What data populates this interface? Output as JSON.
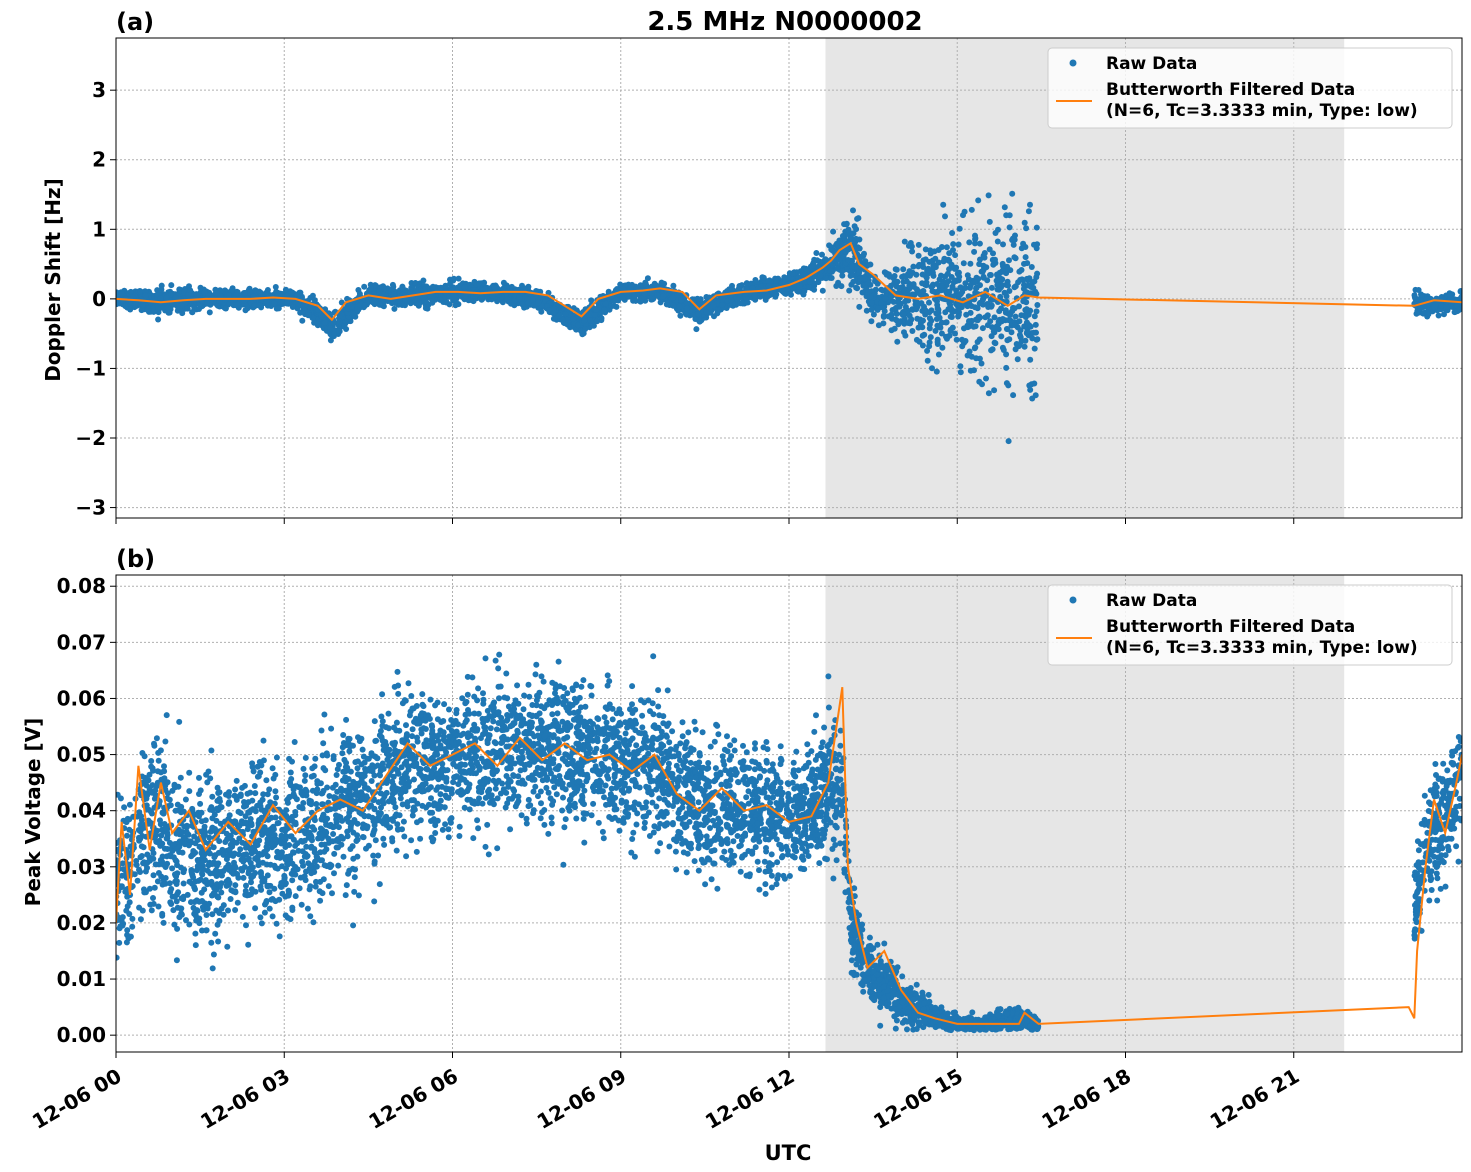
{
  "figure": {
    "title": "2.5 MHz N0000002",
    "xlabel": "UTC"
  },
  "colors": {
    "raw": "#1f77b4",
    "filtered": "#ff7f0e",
    "shade": "#e6e6e6",
    "grid": "#b0b0b0"
  },
  "legend": {
    "raw_label": "Raw Data",
    "filt_line1": "Butterworth Filtered Data",
    "filt_line2": "(N=6, Tc=3.3333 min, Type: low)",
    "placement": "upper-right"
  },
  "chart_data": [
    {
      "panel": "(a)",
      "type": "scatter",
      "ylabel": "Doppler Shift [Hz]",
      "xlim_hours": [
        0,
        24
      ],
      "ylim": [
        -3.15,
        3.75
      ],
      "yticks": [
        -3,
        -2,
        -1,
        0,
        1,
        2,
        3
      ],
      "ytick_labels": [
        "−3",
        "−2",
        "−1",
        "0",
        "1",
        "2",
        "3"
      ],
      "grid": true,
      "shaded_interval_hours": [
        12.65,
        21.9
      ],
      "series": [
        {
          "name": "Raw Data",
          "style": "dots",
          "x_hours": [
            0.0,
            0.8,
            1.6,
            2.4,
            3.2,
            3.85,
            4.5,
            5.3,
            6.1,
            6.8,
            7.5,
            8.3,
            9.0,
            9.7,
            10.4,
            11.2,
            12.0,
            12.6,
            12.9,
            13.2,
            13.5,
            13.9,
            14.3,
            14.7,
            15.1,
            15.5,
            15.9,
            16.2,
            16.45,
            23.15,
            23.5,
            24.0
          ],
          "y_center": [
            0.0,
            -0.05,
            0.0,
            0.0,
            0.0,
            -0.4,
            0.05,
            0.05,
            0.1,
            0.1,
            0.0,
            -0.35,
            0.1,
            0.1,
            -0.2,
            0.1,
            0.2,
            0.4,
            0.65,
            0.7,
            0.0,
            0.0,
            0.05,
            0.0,
            0.1,
            0.0,
            0.0,
            0.05,
            0.0,
            -0.05,
            -0.1,
            -0.05
          ],
          "y_spread": [
            0.15,
            0.3,
            0.25,
            0.2,
            0.2,
            0.35,
            0.2,
            0.25,
            0.25,
            0.2,
            0.2,
            0.3,
            0.2,
            0.2,
            0.3,
            0.2,
            0.25,
            0.35,
            0.6,
            0.9,
            0.5,
            0.8,
            1.2,
            1.6,
            1.8,
            1.9,
            2.1,
            2.3,
            2.4,
            0.3,
            0.25,
            0.2
          ]
        },
        {
          "name": "Butterworth Filtered Data\n(N=6, Tc=3.3333 min, Type: low)",
          "style": "line",
          "x_hours": [
            0.0,
            0.4,
            0.8,
            1.2,
            1.6,
            2.0,
            2.4,
            2.8,
            3.2,
            3.6,
            3.85,
            4.1,
            4.5,
            4.9,
            5.3,
            5.7,
            6.1,
            6.5,
            6.9,
            7.3,
            7.7,
            8.1,
            8.3,
            8.6,
            9.0,
            9.4,
            9.7,
            10.1,
            10.4,
            10.7,
            11.2,
            11.6,
            12.0,
            12.3,
            12.6,
            12.75,
            12.9,
            13.1,
            13.25,
            13.5,
            13.9,
            14.3,
            14.7,
            15.1,
            15.5,
            15.9,
            16.2,
            16.45,
            23.15,
            23.5,
            24.0
          ],
          "y": [
            0.0,
            -0.02,
            -0.05,
            -0.02,
            0.0,
            0.0,
            0.0,
            0.02,
            0.0,
            -0.1,
            -0.3,
            -0.05,
            0.05,
            0.0,
            0.05,
            0.1,
            0.1,
            0.08,
            0.1,
            0.1,
            0.05,
            -0.15,
            -0.25,
            0.0,
            0.1,
            0.12,
            0.15,
            0.1,
            -0.15,
            0.05,
            0.1,
            0.12,
            0.2,
            0.3,
            0.45,
            0.55,
            0.7,
            0.8,
            0.5,
            0.35,
            0.05,
            0.0,
            0.05,
            -0.05,
            0.1,
            -0.1,
            0.05,
            0.02,
            -0.1,
            -0.02,
            -0.05
          ]
        }
      ]
    },
    {
      "panel": "(b)",
      "type": "scatter",
      "ylabel": "Peak Voltage [V]",
      "xlim_hours": [
        0,
        24
      ],
      "ylim": [
        -0.003,
        0.082
      ],
      "yticks": [
        0.0,
        0.01,
        0.02,
        0.03,
        0.04,
        0.05,
        0.06,
        0.07,
        0.08
      ],
      "ytick_labels": [
        "0.00",
        "0.01",
        "0.02",
        "0.03",
        "0.04",
        "0.05",
        "0.06",
        "0.07",
        "0.08"
      ],
      "grid": true,
      "shaded_interval_hours": [
        12.65,
        21.9
      ],
      "xticks_hours": [
        0,
        3,
        6,
        9,
        12,
        15,
        18,
        21
      ],
      "xtick_labels": [
        "12-06 00",
        "12-06 03",
        "12-06 06",
        "12-06 09",
        "12-06 12",
        "12-06 15",
        "12-06 18",
        "12-06 21"
      ],
      "series": [
        {
          "name": "Raw Data",
          "style": "dots",
          "x_hours": [
            0.0,
            0.3,
            0.6,
            1.0,
            1.5,
            2.0,
            2.5,
            3.0,
            3.5,
            4.0,
            4.5,
            5.0,
            5.5,
            6.0,
            6.5,
            7.0,
            7.5,
            8.0,
            8.5,
            9.0,
            9.5,
            10.0,
            10.5,
            11.0,
            11.5,
            12.0,
            12.4,
            12.75,
            12.95,
            13.1,
            13.4,
            13.8,
            14.2,
            14.6,
            15.0,
            15.5,
            16.0,
            16.45,
            23.15,
            23.4,
            23.7,
            24.0
          ],
          "y_center": [
            0.026,
            0.032,
            0.038,
            0.034,
            0.032,
            0.033,
            0.035,
            0.034,
            0.036,
            0.04,
            0.042,
            0.047,
            0.048,
            0.049,
            0.05,
            0.051,
            0.052,
            0.05,
            0.05,
            0.049,
            0.048,
            0.044,
            0.04,
            0.041,
            0.04,
            0.038,
            0.04,
            0.045,
            0.044,
            0.02,
            0.012,
            0.008,
            0.005,
            0.003,
            0.002,
            0.002,
            0.003,
            0.002,
            0.022,
            0.035,
            0.04,
            0.045
          ],
          "y_spread": [
            0.022,
            0.024,
            0.025,
            0.024,
            0.024,
            0.024,
            0.024,
            0.024,
            0.023,
            0.022,
            0.022,
            0.02,
            0.02,
            0.02,
            0.02,
            0.021,
            0.021,
            0.021,
            0.021,
            0.021,
            0.021,
            0.021,
            0.02,
            0.019,
            0.019,
            0.018,
            0.016,
            0.022,
            0.018,
            0.012,
            0.01,
            0.008,
            0.006,
            0.003,
            0.002,
            0.002,
            0.004,
            0.002,
            0.012,
            0.018,
            0.02,
            0.02
          ]
        },
        {
          "name": "Butterworth Filtered Data\n(N=6, Tc=3.3333 min, Type: low)",
          "style": "line",
          "x_hours": [
            0.0,
            0.1,
            0.25,
            0.4,
            0.6,
            0.8,
            1.0,
            1.3,
            1.6,
            2.0,
            2.4,
            2.8,
            3.2,
            3.6,
            4.0,
            4.4,
            4.8,
            5.2,
            5.6,
            6.0,
            6.4,
            6.8,
            7.2,
            7.6,
            8.0,
            8.4,
            8.8,
            9.2,
            9.6,
            10.0,
            10.4,
            10.8,
            11.2,
            11.6,
            12.0,
            12.4,
            12.7,
            12.95,
            13.05,
            13.2,
            13.4,
            13.7,
            14.0,
            14.3,
            14.6,
            15.0,
            15.4,
            15.8,
            16.1,
            16.2,
            16.45,
            23.05,
            23.15,
            23.2,
            23.35,
            23.5,
            23.7,
            23.9,
            24.0
          ],
          "y": [
            0.02,
            0.038,
            0.025,
            0.048,
            0.033,
            0.045,
            0.036,
            0.04,
            0.033,
            0.038,
            0.034,
            0.041,
            0.036,
            0.04,
            0.042,
            0.04,
            0.046,
            0.052,
            0.048,
            0.05,
            0.052,
            0.048,
            0.053,
            0.049,
            0.052,
            0.049,
            0.05,
            0.047,
            0.05,
            0.043,
            0.04,
            0.044,
            0.04,
            0.041,
            0.038,
            0.039,
            0.045,
            0.062,
            0.03,
            0.02,
            0.012,
            0.015,
            0.008,
            0.004,
            0.003,
            0.002,
            0.002,
            0.002,
            0.002,
            0.004,
            0.002,
            0.005,
            0.003,
            0.015,
            0.03,
            0.042,
            0.036,
            0.045,
            0.05
          ]
        }
      ]
    }
  ]
}
